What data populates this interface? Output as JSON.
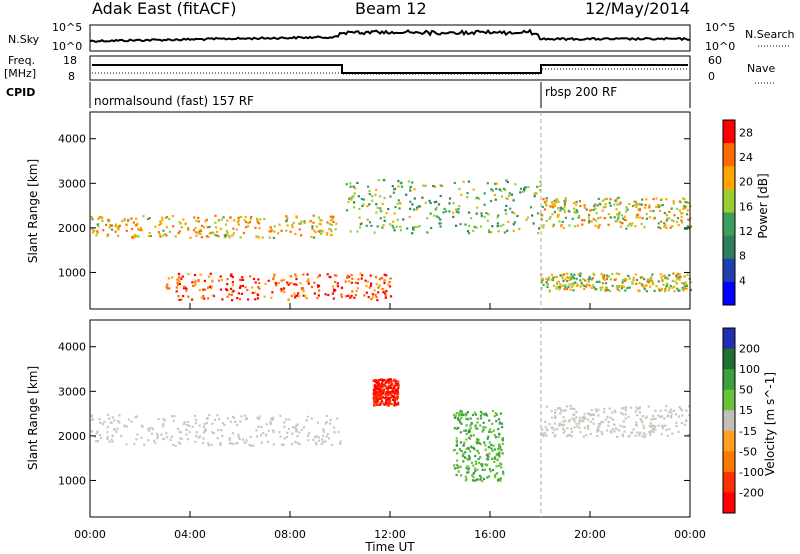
{
  "header": {
    "station": "Adak East (fitACF)",
    "beam": "Beam 12",
    "date": "12/May/2014"
  },
  "top_panels": {
    "nsky_label": "N.Sky",
    "nsky_ticks": [
      "10^5",
      "10^0"
    ],
    "nsearch_label": "N.Search",
    "nsearch_ticks": [
      "10^5",
      "10^0"
    ],
    "freq_label": "Freq.",
    "freq_unit": "[MHz]",
    "freq_ticks": [
      "18",
      "8"
    ],
    "nave_label": "Nave",
    "nave_ticks": [
      "60",
      "0"
    ],
    "cpid_label": "CPID",
    "cpid_segments": [
      "normalsound (fast) 157 RF",
      "rbsp 200 RF"
    ]
  },
  "colors": {
    "power_scale": [
      "#0000ff",
      "#2040b0",
      "#2f7f5f",
      "#3aa05a",
      "#9acd32",
      "#ffa500",
      "#ff6a00",
      "#ff0000"
    ],
    "velocity_scale": [
      "#2030b0",
      "#207030",
      "#3aa040",
      "#6ac13a",
      "#c0c0b8",
      "#ffa020",
      "#ff7800",
      "#ff3000",
      "#ff0000"
    ],
    "ground_scatter": "#c8c8c0"
  },
  "chart_data": [
    {
      "type": "heatmap",
      "title": "",
      "xlabel": "Time UT",
      "ylabel": "Slant Range [km]",
      "x_ticks": [
        "00:00",
        "04:00",
        "08:00",
        "12:00",
        "16:00",
        "20:00",
        "00:00"
      ],
      "y_ticks": [
        "1000",
        "2000",
        "3000",
        "4000"
      ],
      "xlim": [
        0,
        24
      ],
      "ylim": [
        180,
        4600
      ],
      "colorbar": {
        "label": "Power [dB]",
        "ticks": [
          "4",
          "8",
          "12",
          "16",
          "20",
          "24",
          "28"
        ],
        "range": [
          0,
          30
        ]
      },
      "echo_bands": [
        {
          "t": [
            0,
            10
          ],
          "range": [
            1800,
            2300
          ],
          "power": 20
        },
        {
          "t": [
            10.2,
            18
          ],
          "range": [
            1900,
            3100
          ],
          "power": 14
        },
        {
          "t": [
            18,
            24
          ],
          "range": [
            2000,
            2700
          ],
          "power": 18
        },
        {
          "t": [
            3,
            12
          ],
          "range": [
            400,
            1000
          ],
          "power": 26
        },
        {
          "t": [
            18,
            24
          ],
          "range": [
            600,
            1000
          ],
          "power": 18
        }
      ]
    },
    {
      "type": "heatmap",
      "title": "",
      "xlabel": "Time UT",
      "ylabel": "Slant Range [km]",
      "x_ticks": [
        "00:00",
        "04:00",
        "08:00",
        "12:00",
        "16:00",
        "20:00",
        "00:00"
      ],
      "y_ticks": [
        "1000",
        "2000",
        "3000",
        "4000"
      ],
      "xlim": [
        0,
        24
      ],
      "ylim": [
        180,
        4600
      ],
      "colorbar": {
        "label": "Velocity [m s^-1]",
        "ticks": [
          "200",
          "100",
          "50",
          "15",
          "-15",
          "-50",
          "-100",
          "-200"
        ],
        "range": [
          -250,
          250
        ]
      },
      "echo_bands": [
        {
          "t": [
            0,
            10
          ],
          "range": [
            1800,
            2500
          ],
          "velocity": 0
        },
        {
          "t": [
            11.3,
            12.3
          ],
          "range": [
            2700,
            3300
          ],
          "velocity": -200
        },
        {
          "t": [
            14.5,
            16.5
          ],
          "range": [
            1000,
            2600
          ],
          "velocity": 50
        },
        {
          "t": [
            18,
            24
          ],
          "range": [
            2000,
            2700
          ],
          "velocity": 0
        }
      ]
    }
  ]
}
